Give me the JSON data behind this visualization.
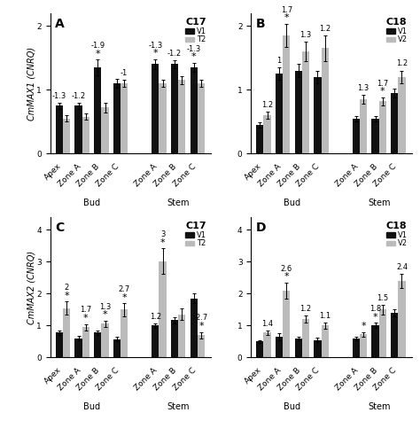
{
  "panels": {
    "A": {
      "title": "C17",
      "legend": [
        "V1",
        "T2"
      ],
      "ylabel": "CmMAX1 (CNRQ)",
      "ylim": [
        0,
        2.2
      ],
      "yticks": [
        0,
        1,
        2
      ],
      "v1_values": [
        0.75,
        0.75,
        1.35,
        1.1,
        1.4,
        1.4,
        1.35
      ],
      "v2_values": [
        0.55,
        0.58,
        0.72,
        1.1,
        1.1,
        1.15,
        1.1
      ],
      "v1_err": [
        0.05,
        0.05,
        0.12,
        0.07,
        0.08,
        0.06,
        0.07
      ],
      "v2_err": [
        0.05,
        0.05,
        0.07,
        0.05,
        0.06,
        0.06,
        0.05
      ],
      "v1_annot": [
        "-1.3",
        "-1.2",
        "-1.9",
        null,
        "-1.3",
        "-1.2",
        "-1.3"
      ],
      "v2_annot": [
        null,
        null,
        null,
        "-1",
        null,
        null,
        null
      ],
      "v1_star": [
        false,
        false,
        true,
        false,
        true,
        false,
        true
      ],
      "v2_star": [
        false,
        false,
        false,
        false,
        false,
        false,
        false
      ]
    },
    "B": {
      "title": "C18",
      "legend": [
        "V1",
        "V2"
      ],
      "ylabel": "",
      "ylim": [
        0,
        2.2
      ],
      "yticks": [
        0,
        1,
        2
      ],
      "v1_values": [
        0.45,
        1.25,
        1.3,
        1.2,
        0.55,
        0.55,
        0.95
      ],
      "v2_values": [
        0.6,
        1.85,
        1.6,
        1.65,
        0.85,
        0.82,
        1.2
      ],
      "v1_err": [
        0.04,
        0.1,
        0.1,
        0.1,
        0.04,
        0.04,
        0.07
      ],
      "v2_err": [
        0.06,
        0.18,
        0.15,
        0.2,
        0.07,
        0.06,
        0.1
      ],
      "v1_annot": [
        null,
        "1",
        null,
        null,
        null,
        null,
        null
      ],
      "v2_annot": [
        "1.2",
        "1.7",
        "1.3",
        "1.2",
        "1.3",
        "1.7",
        "1.2"
      ],
      "v1_star": [
        false,
        false,
        false,
        false,
        false,
        false,
        false
      ],
      "v2_star": [
        false,
        true,
        false,
        false,
        false,
        true,
        false
      ]
    },
    "C": {
      "title": "C17",
      "legend": [
        "V1",
        "T2"
      ],
      "ylabel": "CmMAX2 (CNRQ)",
      "ylim": [
        0,
        4.4
      ],
      "yticks": [
        0,
        1,
        2,
        3,
        4
      ],
      "v1_values": [
        0.78,
        0.6,
        0.78,
        0.58,
        1.0,
        1.17,
        1.85
      ],
      "v2_values": [
        1.55,
        0.95,
        1.06,
        1.5,
        3.02,
        1.35,
        0.7
      ],
      "v1_err": [
        0.07,
        0.07,
        0.07,
        0.06,
        0.07,
        0.1,
        0.15
      ],
      "v2_err": [
        0.2,
        0.1,
        0.1,
        0.2,
        0.4,
        0.18,
        0.1
      ],
      "v1_annot": [
        null,
        null,
        null,
        null,
        "1.2",
        null,
        null
      ],
      "v2_annot": [
        "2",
        "1.7",
        "1.3",
        "2.7",
        "3",
        null,
        "-2.7"
      ],
      "v1_star": [
        false,
        false,
        false,
        false,
        false,
        false,
        false
      ],
      "v2_star": [
        true,
        true,
        true,
        true,
        true,
        false,
        true
      ]
    },
    "D": {
      "title": "C18",
      "legend": [
        "V1",
        "V2"
      ],
      "ylabel": "",
      "ylim": [
        0,
        4.4
      ],
      "yticks": [
        0,
        1,
        2,
        3,
        4
      ],
      "v1_values": [
        0.5,
        0.65,
        0.6,
        0.55,
        0.6,
        1.0,
        1.4
      ],
      "v2_values": [
        0.78,
        2.1,
        1.2,
        1.0,
        0.72,
        1.5,
        2.4
      ],
      "v1_err": [
        0.04,
        0.1,
        0.06,
        0.06,
        0.05,
        0.08,
        0.12
      ],
      "v2_err": [
        0.07,
        0.25,
        0.12,
        0.1,
        0.07,
        0.15,
        0.22
      ],
      "v1_annot": [
        null,
        null,
        null,
        null,
        null,
        "1.8",
        null
      ],
      "v2_annot": [
        "1.4",
        "2.6",
        "1.2",
        "1.1",
        null,
        "1.5",
        "2.4"
      ],
      "v1_star": [
        false,
        false,
        false,
        false,
        false,
        true,
        false
      ],
      "v2_star": [
        false,
        true,
        false,
        false,
        true,
        false,
        false
      ]
    }
  },
  "bar_color_v1": "#111111",
  "bar_color_v2": "#bbbbbb",
  "bar_width": 0.38,
  "group_positions": [
    0,
    1,
    2,
    3,
    5,
    6,
    7
  ],
  "group_labels": [
    "Apex",
    "Zone A",
    "Zone B",
    "Zone C",
    "Zone A",
    "Zone B",
    "Zone C"
  ],
  "bud_range": [
    0,
    3
  ],
  "stem_range": [
    4,
    6
  ],
  "fontsize_label": 7,
  "fontsize_tick": 6.5,
  "fontsize_title": 8,
  "fontsize_annot": 6,
  "fontsize_panel": 10,
  "background_color": "#ffffff"
}
